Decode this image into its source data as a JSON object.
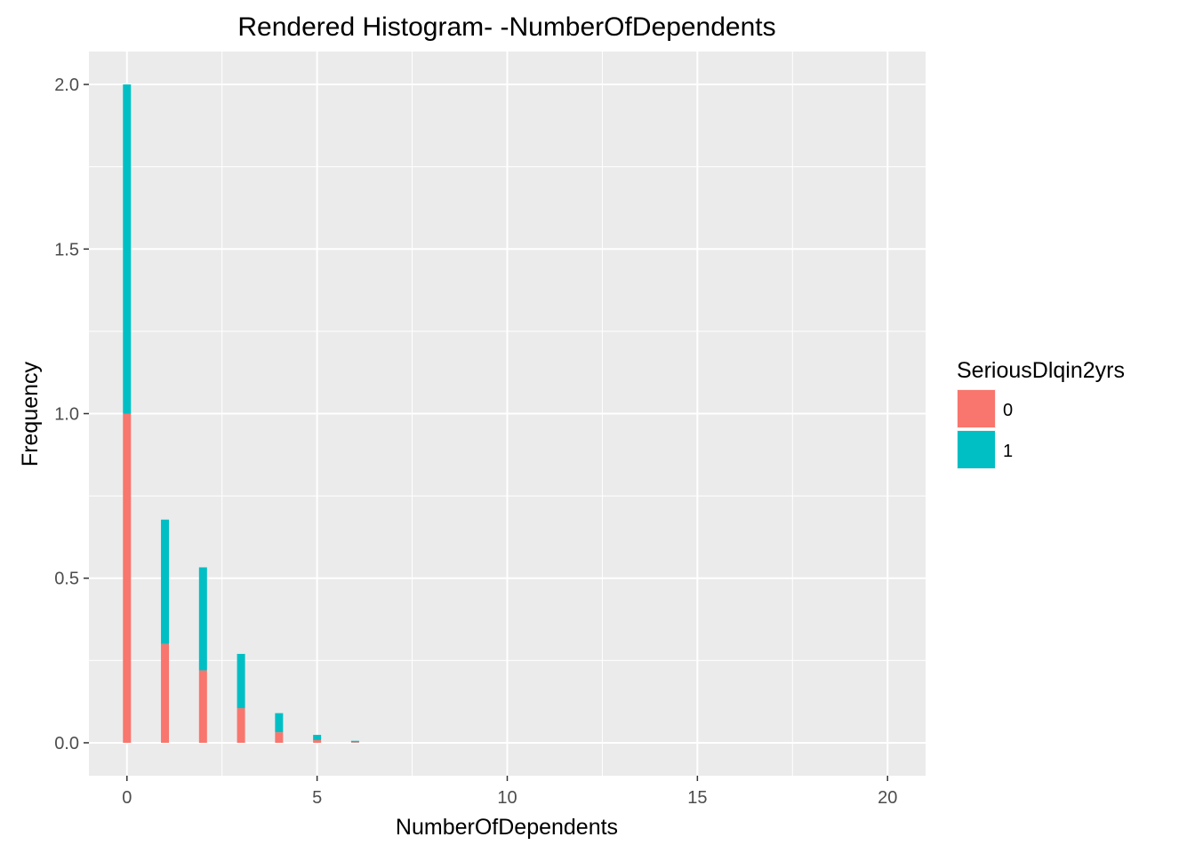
{
  "chart_data": {
    "type": "bar",
    "stacked": true,
    "title": "Rendered Histogram- -NumberOfDependents",
    "xlabel": "NumberOfDependents",
    "ylabel": "Frequency",
    "xlim": [
      -1,
      21
    ],
    "ylim": [
      -0.1,
      2.1
    ],
    "x_ticks": [
      0,
      5,
      10,
      15,
      20
    ],
    "y_ticks": [
      0.0,
      0.5,
      1.0,
      1.5,
      2.0
    ],
    "y_tick_labels": [
      "0.0",
      "0.5",
      "1.0",
      "1.5",
      "2.0"
    ],
    "grid": true,
    "legend": {
      "title": "SeriousDlqin2yrs",
      "position": "right"
    },
    "x": [
      0,
      1,
      2,
      3,
      4,
      5,
      6
    ],
    "series": [
      {
        "name": "0",
        "color": "#F8766D",
        "values": [
          1.0,
          0.3,
          0.22,
          0.105,
          0.032,
          0.008,
          0.002
        ]
      },
      {
        "name": "1",
        "color": "#00BFC4",
        "values": [
          1.0,
          0.378,
          0.313,
          0.165,
          0.058,
          0.016,
          0.004
        ]
      }
    ],
    "panel_background": "#EBEBEB",
    "grid_color": "#FFFFFF"
  }
}
